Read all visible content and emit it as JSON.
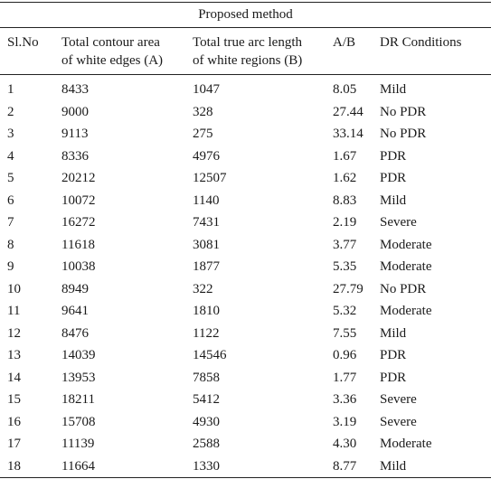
{
  "caption": "Proposed method",
  "headers": {
    "sl_no": "Sl.No",
    "area_line1": "Total contour area",
    "area_line2": "of white edges (A)",
    "arc_line1": "Total true arc length",
    "arc_line2": "of white regions (B)",
    "ratio": "A/B",
    "condition": "DR Conditions"
  },
  "rows": [
    {
      "sl": "1",
      "a": "8433",
      "b": "1047",
      "ratio": "8.05",
      "cond": "Mild"
    },
    {
      "sl": "2",
      "a": "9000",
      "b": "328",
      "ratio": "27.44",
      "cond": "No PDR"
    },
    {
      "sl": "3",
      "a": "9113",
      "b": "275",
      "ratio": "33.14",
      "cond": "No PDR"
    },
    {
      "sl": "4",
      "a": "8336",
      "b": "4976",
      "ratio": "1.67",
      "cond": "PDR"
    },
    {
      "sl": "5",
      "a": "20212",
      "b": "12507",
      "ratio": "1.62",
      "cond": "PDR"
    },
    {
      "sl": "6",
      "a": "10072",
      "b": "1140",
      "ratio": "8.83",
      "cond": "Mild"
    },
    {
      "sl": "7",
      "a": "16272",
      "b": "7431",
      "ratio": "2.19",
      "cond": "Severe"
    },
    {
      "sl": "8",
      "a": "11618",
      "b": "3081",
      "ratio": "3.77",
      "cond": "Moderate"
    },
    {
      "sl": "9",
      "a": "10038",
      "b": "1877",
      "ratio": "5.35",
      "cond": "Moderate"
    },
    {
      "sl": "10",
      "a": "8949",
      "b": "322",
      "ratio": "27.79",
      "cond": "No PDR"
    },
    {
      "sl": "11",
      "a": "9641",
      "b": "1810",
      "ratio": "5.32",
      "cond": "Moderate"
    },
    {
      "sl": "12",
      "a": "8476",
      "b": "1122",
      "ratio": "7.55",
      "cond": "Mild"
    },
    {
      "sl": "13",
      "a": "14039",
      "b": "14546",
      "ratio": "0.96",
      "cond": "PDR"
    },
    {
      "sl": "14",
      "a": "13953",
      "b": "7858",
      "ratio": "1.77",
      "cond": "PDR"
    },
    {
      "sl": "15",
      "a": "18211",
      "b": "5412",
      "ratio": "3.36",
      "cond": "Severe"
    },
    {
      "sl": "16",
      "a": "15708",
      "b": "4930",
      "ratio": "3.19",
      "cond": "Severe"
    },
    {
      "sl": "17",
      "a": "11139",
      "b": "2588",
      "ratio": "4.30",
      "cond": "Moderate"
    },
    {
      "sl": "18",
      "a": "11664",
      "b": "1330",
      "ratio": "8.77",
      "cond": "Mild"
    }
  ]
}
